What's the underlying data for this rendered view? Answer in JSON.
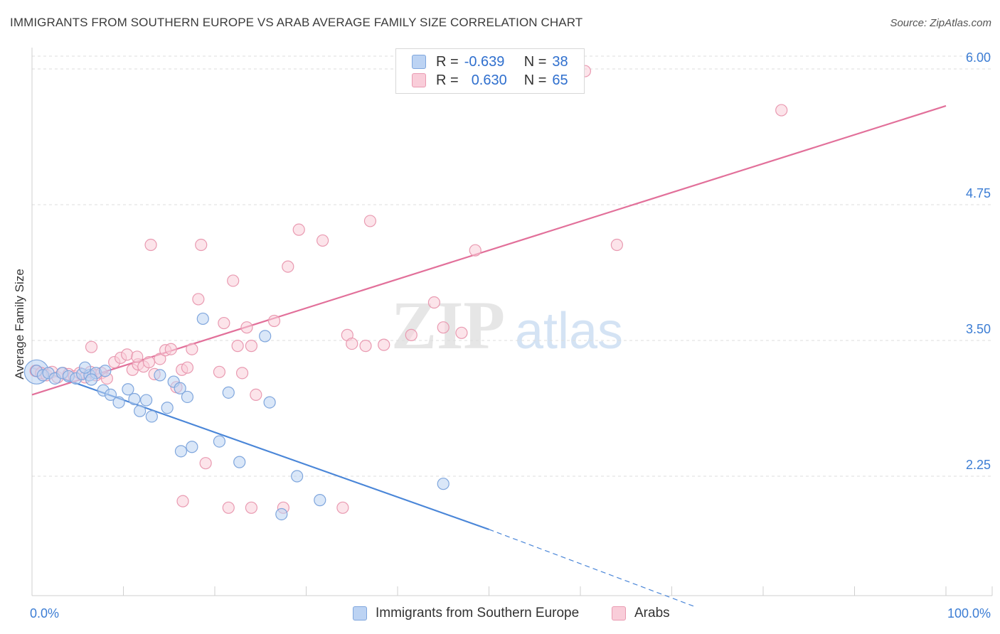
{
  "header": {
    "title": "IMMIGRANTS FROM SOUTHERN EUROPE VS ARAB AVERAGE FAMILY SIZE CORRELATION CHART",
    "source": "Source: ZipAtlas.com"
  },
  "watermark": {
    "zip": "ZIP",
    "atlas": "atlas"
  },
  "legend": {
    "rows": [
      {
        "r_label": "R =",
        "r_value": "-0.639",
        "n_label": "N =",
        "n_value": "38"
      },
      {
        "r_label": "R =",
        "r_value": "0.630",
        "n_label": "N =",
        "n_value": "65"
      }
    ]
  },
  "bottom_legend": {
    "items": [
      "Immigrants from Southern Europe",
      "Arabs"
    ]
  },
  "chart_data": {
    "type": "scatter",
    "title": "IMMIGRANTS FROM SOUTHERN EUROPE VS ARAB AVERAGE FAMILY SIZE CORRELATION CHART",
    "xlabel": "",
    "ylabel": "Average Family Size",
    "xlim": [
      0,
      100
    ],
    "ylim": [
      1.0,
      6.1
    ],
    "x_tick_labels": [
      "0.0%",
      "100.0%"
    ],
    "y_ticks": [
      2.25,
      3.5,
      4.75,
      6.0
    ],
    "y_tick_labels": [
      "2.25",
      "3.50",
      "4.75",
      "6.00"
    ],
    "grid": "horizontal dashed",
    "colors": {
      "blue": "#4a86d8",
      "blue_fill": "#bcd3f3",
      "pink": "#e2709a",
      "pink_fill": "#f9cdd9",
      "axis_text": "#3c7dd4"
    },
    "series": [
      {
        "name": "Immigrants from Southern Europe",
        "color": "#4a86d8",
        "r": -0.639,
        "n": 38,
        "trend": {
          "x": [
            0,
            50
          ],
          "y": [
            3.25,
            1.76
          ],
          "dashed_to": [
            72.5,
            1.05
          ]
        },
        "points": [
          [
            0.5,
            3.22
          ],
          [
            1.2,
            3.18
          ],
          [
            1.8,
            3.2
          ],
          [
            2.5,
            3.15
          ],
          [
            3.3,
            3.2
          ],
          [
            4.0,
            3.17
          ],
          [
            4.8,
            3.15
          ],
          [
            5.5,
            3.19
          ],
          [
            6.3,
            3.18
          ],
          [
            7.0,
            3.2
          ],
          [
            5.8,
            3.25
          ],
          [
            6.5,
            3.14
          ],
          [
            7.8,
            3.04
          ],
          [
            8.6,
            3.0
          ],
          [
            9.5,
            2.93
          ],
          [
            10.5,
            3.05
          ],
          [
            11.2,
            2.96
          ],
          [
            11.8,
            2.85
          ],
          [
            12.5,
            2.95
          ],
          [
            13.1,
            2.8
          ],
          [
            14.0,
            3.18
          ],
          [
            14.8,
            2.88
          ],
          [
            15.5,
            3.12
          ],
          [
            16.2,
            3.06
          ],
          [
            17.0,
            2.98
          ],
          [
            17.5,
            2.52
          ],
          [
            18.7,
            3.7
          ],
          [
            20.5,
            2.57
          ],
          [
            16.3,
            2.48
          ],
          [
            21.5,
            3.02
          ],
          [
            22.7,
            2.38
          ],
          [
            25.5,
            3.54
          ],
          [
            26.0,
            2.93
          ],
          [
            27.3,
            1.9
          ],
          [
            29.0,
            2.25
          ],
          [
            31.5,
            2.03
          ],
          [
            45.0,
            2.18
          ],
          [
            8.0,
            3.22
          ]
        ]
      },
      {
        "name": "Arabs",
        "color": "#e2709a",
        "r": 0.63,
        "n": 65,
        "trend": {
          "x": [
            0,
            100
          ],
          "y": [
            3.0,
            5.66
          ]
        },
        "points": [
          [
            0.4,
            3.22
          ],
          [
            1.0,
            3.2
          ],
          [
            1.6,
            3.18
          ],
          [
            2.2,
            3.21
          ],
          [
            2.8,
            3.16
          ],
          [
            3.4,
            3.2
          ],
          [
            4.0,
            3.19
          ],
          [
            4.6,
            3.17
          ],
          [
            5.2,
            3.2
          ],
          [
            5.8,
            3.16
          ],
          [
            6.4,
            3.21
          ],
          [
            7.0,
            3.18
          ],
          [
            7.6,
            3.2
          ],
          [
            8.2,
            3.15
          ],
          [
            9.0,
            3.3
          ],
          [
            9.7,
            3.34
          ],
          [
            10.4,
            3.37
          ],
          [
            11.0,
            3.23
          ],
          [
            11.6,
            3.28
          ],
          [
            12.2,
            3.26
          ],
          [
            12.8,
            3.3
          ],
          [
            13.4,
            3.19
          ],
          [
            14.0,
            3.33
          ],
          [
            14.6,
            3.41
          ],
          [
            15.2,
            3.42
          ],
          [
            15.8,
            3.07
          ],
          [
            16.4,
            3.23
          ],
          [
            17.0,
            3.25
          ],
          [
            17.5,
            3.42
          ],
          [
            18.2,
            3.88
          ],
          [
            20.5,
            3.21
          ],
          [
            21.0,
            3.66
          ],
          [
            22.5,
            3.45
          ],
          [
            23.5,
            3.62
          ],
          [
            24.0,
            3.45
          ],
          [
            19.0,
            2.37
          ],
          [
            16.5,
            2.02
          ],
          [
            22.0,
            4.05
          ],
          [
            18.5,
            4.38
          ],
          [
            24.5,
            3.0
          ],
          [
            26.5,
            3.68
          ],
          [
            28.0,
            4.18
          ],
          [
            29.2,
            4.52
          ],
          [
            31.8,
            4.42
          ],
          [
            37.0,
            4.6
          ],
          [
            34.5,
            3.55
          ],
          [
            36.5,
            3.45
          ],
          [
            38.5,
            3.46
          ],
          [
            41.5,
            3.55
          ],
          [
            44.0,
            3.85
          ],
          [
            45.0,
            3.62
          ],
          [
            47.0,
            3.57
          ],
          [
            48.5,
            4.33
          ],
          [
            64.0,
            4.38
          ],
          [
            13.0,
            4.38
          ],
          [
            35.0,
            3.47
          ],
          [
            21.5,
            1.96
          ],
          [
            24.0,
            1.96
          ],
          [
            27.5,
            1.96
          ],
          [
            34.0,
            1.96
          ],
          [
            23.0,
            3.2
          ],
          [
            60.5,
            5.98
          ],
          [
            82.0,
            5.62
          ],
          [
            6.5,
            3.44
          ],
          [
            11.5,
            3.35
          ]
        ]
      }
    ]
  }
}
